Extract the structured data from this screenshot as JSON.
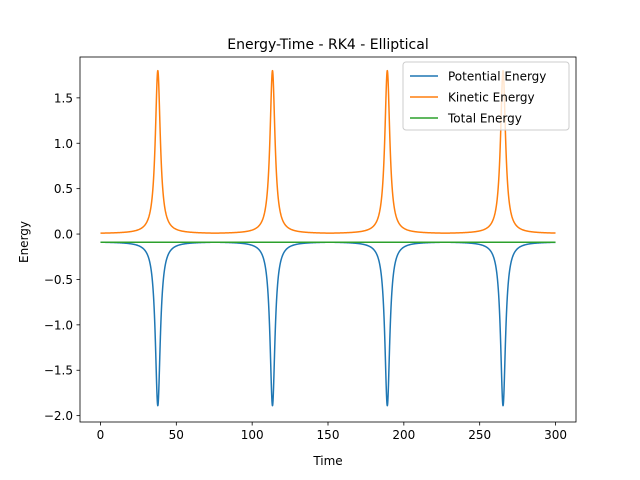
{
  "chart_data": {
    "type": "line",
    "title": "Energy-Time - RK4 - Elliptical",
    "xlabel": "Time",
    "ylabel": "Energy",
    "xlim": [
      -13.5,
      313.5
    ],
    "ylim": [
      -2.07,
      1.95
    ],
    "xticks": [
      0,
      50,
      100,
      150,
      200,
      250,
      300
    ],
    "xtick_labels": [
      "0",
      "50",
      "100",
      "150",
      "200",
      "250",
      "300"
    ],
    "yticks": [
      -2.0,
      -1.5,
      -1.0,
      -0.5,
      0.0,
      0.5,
      1.0,
      1.5
    ],
    "ytick_labels": [
      "−2.0",
      "−1.5",
      "−1.0",
      "−0.5",
      "0.0",
      "0.5",
      "1.0",
      "1.5"
    ],
    "grid": false,
    "legend_position": "top-right",
    "x_range": [
      0,
      300
    ],
    "peak_times": [
      37.8,
      113.4,
      189.1,
      265.4
    ],
    "series": [
      {
        "name": "Potential Energy",
        "color": "#1f77b4",
        "baseline": -0.085,
        "at_peak": -1.89
      },
      {
        "name": "Kinetic Energy",
        "color": "#ff7f0e",
        "baseline": 0.005,
        "at_peak": 1.8
      },
      {
        "name": "Total Energy",
        "color": "#2ca02c",
        "constant": -0.09
      }
    ]
  }
}
